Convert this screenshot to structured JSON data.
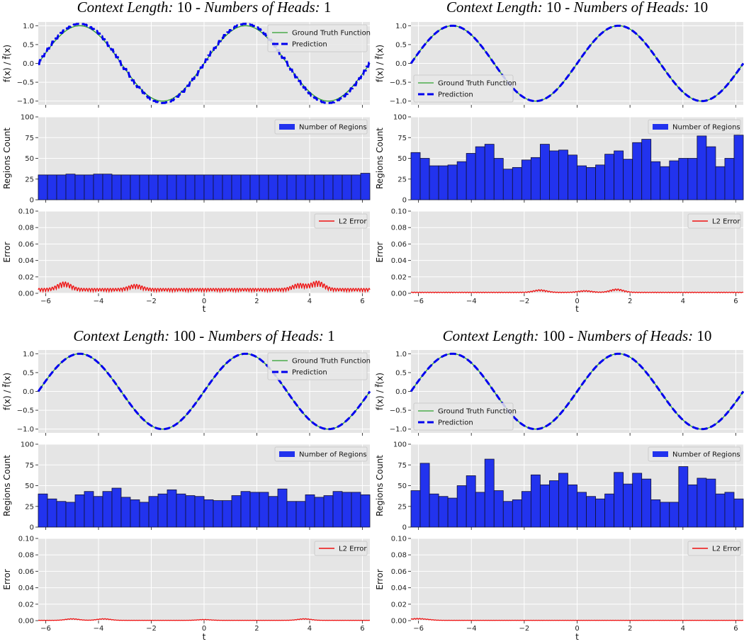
{
  "labels": {
    "ylabel_function": "f(x) / f̃(x)",
    "ylabel_regions": "Regions Count",
    "ylabel_error": "Error",
    "xlabel": "t",
    "legend_gt": "Ground Truth Function",
    "legend_pred": "Prediction",
    "legend_regions": "Number of Regions",
    "legend_l2": "L2 Error",
    "title_ctx": "Context Length:",
    "title_sep": " - ",
    "title_heads": "Numbers of Heads:"
  },
  "axes": {
    "x_range": [
      -6.2832,
      6.2832
    ],
    "x_ticks": [
      -6,
      -4,
      -2,
      0,
      2,
      4,
      6
    ],
    "function_ylim": [
      -1.1,
      1.1
    ],
    "function_yticks": [
      -1.0,
      -0.5,
      0.0,
      0.5,
      1.0
    ],
    "regions_ylim": [
      0,
      100
    ],
    "regions_yticks": [
      0,
      25,
      50,
      75,
      100
    ],
    "error_ylim": [
      0,
      0.1
    ],
    "error_yticks": [
      0.0,
      0.02,
      0.04,
      0.06,
      0.08,
      0.1
    ]
  },
  "colors": {
    "ground_truth": "#2ca02c",
    "prediction": "#0000ee",
    "bars": "#2233ee",
    "error": "#ee1111",
    "axes_bg": "#e5e5e5",
    "grid": "#ffffff"
  },
  "chart_data": [
    {
      "type": "line",
      "context_length": "10",
      "heads": "1",
      "function": "sin(t)",
      "legend_position": "top-right",
      "prediction_staircase_step": 0.1,
      "regions": {
        "type": "bar",
        "bins": 36,
        "values": [
          30,
          30,
          30,
          31,
          30,
          30,
          31,
          31,
          30,
          30,
          30,
          30,
          30,
          30,
          30,
          30,
          30,
          30,
          30,
          30,
          30,
          30,
          30,
          30,
          30,
          30,
          30,
          30,
          30,
          30,
          30,
          30,
          30,
          30,
          30,
          32
        ]
      },
      "error": {
        "type": "line",
        "base": 0.002,
        "oscillation": 0.004,
        "envelope_peaks": [
          [
            -5.3,
            0.008
          ],
          [
            -2.6,
            0.005
          ],
          [
            3.6,
            0.006
          ],
          [
            4.3,
            0.009
          ]
        ]
      }
    },
    {
      "type": "line",
      "context_length": "10",
      "heads": "10",
      "function": "sin(t)",
      "legend_position": "bottom-left",
      "prediction_staircase_step": 0,
      "regions": {
        "type": "bar",
        "bins": 36,
        "values": [
          57,
          50,
          41,
          41,
          42,
          46,
          56,
          64,
          67,
          50,
          37,
          39,
          48,
          51,
          67,
          59,
          60,
          54,
          41,
          39,
          42,
          55,
          59,
          49,
          69,
          73,
          46,
          40,
          47,
          50,
          50,
          77,
          64,
          40,
          50,
          78
        ]
      },
      "error": {
        "type": "line",
        "base": 0.0006,
        "oscillation": 0.0008,
        "envelope_peaks": [
          [
            -1.4,
            0.003
          ],
          [
            0.3,
            0.002
          ],
          [
            1.5,
            0.004
          ]
        ]
      }
    },
    {
      "type": "line",
      "context_length": "100",
      "heads": "1",
      "function": "sin(t)",
      "legend_position": "top-right",
      "prediction_staircase_step": 0,
      "regions": {
        "type": "bar",
        "bins": 36,
        "values": [
          40,
          34,
          31,
          30,
          39,
          43,
          37,
          43,
          47,
          36,
          33,
          30,
          37,
          40,
          45,
          40,
          38,
          37,
          33,
          32,
          32,
          38,
          43,
          42,
          42,
          37,
          46,
          31,
          31,
          39,
          36,
          38,
          43,
          42,
          42,
          39
        ]
      },
      "error": {
        "type": "line",
        "base": 0.0002,
        "oscillation": 0.0002,
        "envelope_peaks": [
          [
            -5.0,
            0.002
          ],
          [
            -3.8,
            0.002
          ],
          [
            0.0,
            0.001
          ],
          [
            3.8,
            0.002
          ]
        ]
      }
    },
    {
      "type": "line",
      "context_length": "100",
      "heads": "10",
      "function": "sin(t)",
      "legend_position": "bottom-left",
      "prediction_staircase_step": 0,
      "regions": {
        "type": "bar",
        "bins": 36,
        "values": [
          44,
          77,
          40,
          37,
          35,
          50,
          62,
          42,
          82,
          44,
          31,
          33,
          43,
          63,
          51,
          56,
          65,
          51,
          42,
          37,
          34,
          40,
          66,
          52,
          65,
          58,
          33,
          30,
          30,
          73,
          51,
          59,
          58,
          40,
          42,
          34
        ]
      },
      "error": {
        "type": "line",
        "base": 0.0002,
        "oscillation": 0.0002,
        "envelope_peaks": [
          [
            -6.1,
            0.002
          ],
          [
            -5.7,
            0.001
          ]
        ]
      }
    }
  ]
}
